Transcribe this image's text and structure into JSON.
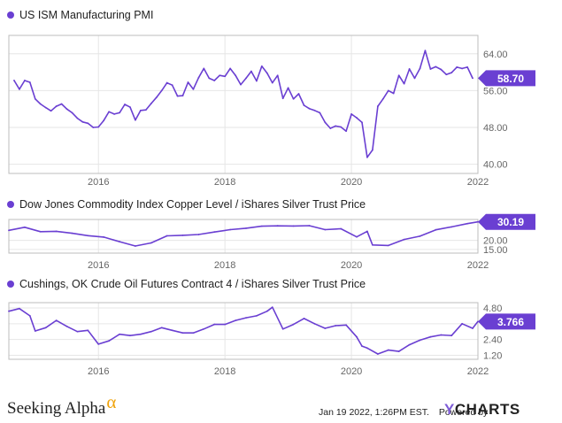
{
  "colors": {
    "line": "#6a3fd2",
    "badge": "#6a3fd2",
    "grid": "#e6e6e6",
    "axis": "#bdbdbd",
    "text": "#666666"
  },
  "footer": {
    "logo_text": "Seeking Alpha",
    "logo_symbol": "α",
    "timestamp": "Jan 19 2022, 1:26PM EST.",
    "powered_by": "Powered by",
    "ycharts_y": "Y",
    "ycharts_rest": "CHARTS"
  },
  "chart_data": [
    {
      "type": "line",
      "title": "US ISM Manufacturing PMI",
      "x_ticks": [
        "2016",
        "2018",
        "2020",
        "2022"
      ],
      "y_ticks": [
        "40.00",
        "48.00",
        "56.00",
        "64.00"
      ],
      "ylim": [
        38,
        68
      ],
      "xlim": [
        "2014-08",
        "2022-01"
      ],
      "last_value_label": "58.70",
      "grid": true,
      "series": [
        {
          "x": [
            "2014-09",
            "2014-10",
            "2014-11",
            "2014-12",
            "2015-01",
            "2015-02",
            "2015-03",
            "2015-04",
            "2015-05",
            "2015-06",
            "2015-07",
            "2015-08",
            "2015-09",
            "2015-10",
            "2015-11",
            "2015-12",
            "2016-01",
            "2016-02",
            "2016-03",
            "2016-04",
            "2016-05",
            "2016-06",
            "2016-07",
            "2016-08",
            "2016-09",
            "2016-10",
            "2016-11",
            "2016-12",
            "2017-01",
            "2017-02",
            "2017-03",
            "2017-04",
            "2017-05",
            "2017-06",
            "2017-07",
            "2017-08",
            "2017-09",
            "2017-10",
            "2017-11",
            "2017-12",
            "2018-01",
            "2018-02",
            "2018-03",
            "2018-04",
            "2018-05",
            "2018-06",
            "2018-07",
            "2018-08",
            "2018-09",
            "2018-10",
            "2018-11",
            "2018-12",
            "2019-01",
            "2019-02",
            "2019-03",
            "2019-04",
            "2019-05",
            "2019-06",
            "2019-07",
            "2019-08",
            "2019-09",
            "2019-10",
            "2019-11",
            "2019-12",
            "2020-01",
            "2020-02",
            "2020-03",
            "2020-04",
            "2020-05",
            "2020-06",
            "2020-07",
            "2020-08",
            "2020-09",
            "2020-10",
            "2020-11",
            "2020-12",
            "2021-01",
            "2021-02",
            "2021-03",
            "2021-04",
            "2021-05",
            "2021-06",
            "2021-07",
            "2021-08",
            "2021-09",
            "2021-10",
            "2021-11",
            "2021-12"
          ],
          "values": [
            58.2,
            56.3,
            58.2,
            57.8,
            54.2,
            53.1,
            52.3,
            51.6,
            52.6,
            53.1,
            52.0,
            51.2,
            50.0,
            49.2,
            48.9,
            48.0,
            48.1,
            49.5,
            51.4,
            50.9,
            51.2,
            53.0,
            52.4,
            49.6,
            51.7,
            51.8,
            53.2,
            54.5,
            56.0,
            57.7,
            57.2,
            54.8,
            54.9,
            57.8,
            56.3,
            58.8,
            60.8,
            58.7,
            58.2,
            59.3,
            59.1,
            60.8,
            59.3,
            57.3,
            58.7,
            60.2,
            58.1,
            61.3,
            59.8,
            57.7,
            59.3,
            54.3,
            56.6,
            54.2,
            55.3,
            52.8,
            52.1,
            51.7,
            51.2,
            49.1,
            47.8,
            48.3,
            48.1,
            47.2,
            50.9,
            50.1,
            49.1,
            41.5,
            43.1,
            52.6,
            54.2,
            56.0,
            55.4,
            59.3,
            57.5,
            60.7,
            58.7,
            60.8,
            64.7,
            60.7,
            61.2,
            60.6,
            59.5,
            59.9,
            61.1,
            60.8,
            61.1,
            58.7
          ]
        }
      ]
    },
    {
      "type": "line",
      "title": "Dow Jones Commodity Index Copper Level / iShares Silver Trust Price",
      "x_ticks": [
        "2016",
        "2018",
        "2020",
        "2022"
      ],
      "y_ticks": [
        "15.00",
        "20.00"
      ],
      "ylim": [
        13,
        31.5
      ],
      "xlim": [
        "2014-08",
        "2022-01"
      ],
      "last_value_label": "30.19",
      "grid": true,
      "series": [
        {
          "x": [
            "2014-08",
            "2014-11",
            "2015-02",
            "2015-05",
            "2015-08",
            "2015-11",
            "2016-02",
            "2016-05",
            "2016-08",
            "2016-11",
            "2017-02",
            "2017-05",
            "2017-08",
            "2017-11",
            "2018-02",
            "2018-05",
            "2018-08",
            "2018-11",
            "2019-02",
            "2019-05",
            "2019-08",
            "2019-11",
            "2020-02",
            "2020-04",
            "2020-05",
            "2020-08",
            "2020-11",
            "2021-02",
            "2021-05",
            "2021-08",
            "2021-11",
            "2022-01"
          ],
          "values": [
            25.5,
            27.2,
            24.8,
            25.0,
            23.9,
            22.6,
            21.8,
            19.3,
            16.9,
            18.6,
            22.5,
            22.8,
            23.2,
            24.6,
            25.9,
            26.7,
            27.8,
            28.0,
            27.9,
            28.1,
            25.9,
            26.4,
            21.9,
            25.0,
            17.5,
            17.2,
            20.5,
            22.3,
            25.8,
            27.4,
            29.2,
            30.19
          ]
        }
      ]
    },
    {
      "type": "line",
      "title": "Cushings, OK Crude Oil Futures Contract 4 / iShares Silver Trust Price",
      "x_ticks": [
        "2016",
        "2018",
        "2020",
        "2022"
      ],
      "y_ticks": [
        "1.20",
        "2.40",
        "3.60",
        "4.80"
      ],
      "ylim": [
        0.9,
        5.2
      ],
      "xlim": [
        "2014-08",
        "2022-01"
      ],
      "last_value_label": "3.766",
      "grid": true,
      "series": [
        {
          "x": [
            "2014-08",
            "2014-10",
            "2014-12",
            "2015-01",
            "2015-03",
            "2015-05",
            "2015-07",
            "2015-09",
            "2015-11",
            "2016-01",
            "2016-03",
            "2016-05",
            "2016-07",
            "2016-09",
            "2016-11",
            "2017-01",
            "2017-03",
            "2017-05",
            "2017-07",
            "2017-09",
            "2017-11",
            "2018-01",
            "2018-03",
            "2018-05",
            "2018-07",
            "2018-09",
            "2018-10",
            "2018-12",
            "2019-02",
            "2019-04",
            "2019-06",
            "2019-08",
            "2019-10",
            "2019-12",
            "2020-02",
            "2020-03",
            "2020-04",
            "2020-06",
            "2020-08",
            "2020-10",
            "2020-12",
            "2021-02",
            "2021-04",
            "2021-06",
            "2021-08",
            "2021-10",
            "2021-12",
            "2022-01"
          ],
          "values": [
            4.55,
            4.75,
            4.2,
            3.05,
            3.3,
            3.85,
            3.4,
            3.0,
            3.1,
            2.05,
            2.3,
            2.8,
            2.7,
            2.8,
            3.0,
            3.3,
            3.1,
            2.9,
            2.9,
            3.2,
            3.55,
            3.55,
            3.85,
            4.05,
            4.2,
            4.55,
            4.85,
            3.2,
            3.55,
            4.0,
            3.6,
            3.25,
            3.45,
            3.5,
            2.6,
            1.9,
            1.75,
            1.3,
            1.6,
            1.5,
            2.0,
            2.35,
            2.6,
            2.75,
            2.7,
            3.6,
            3.25,
            3.766
          ]
        }
      ]
    }
  ]
}
